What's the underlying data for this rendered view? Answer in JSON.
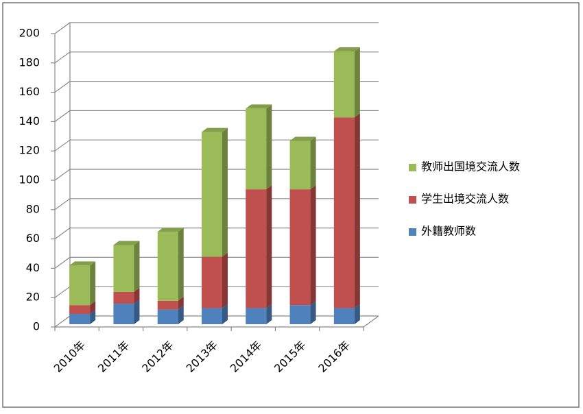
{
  "chart_data": {
    "type": "bar3d_stacked",
    "categories": [
      "2010年",
      "2011年",
      "2012年",
      "2013年",
      "2014年",
      "2015年",
      "2016年"
    ],
    "series": [
      {
        "name": "外籍教师数",
        "color": "#4f81bd",
        "values": [
          7,
          14,
          10,
          11,
          11,
          13,
          11
        ]
      },
      {
        "name": "学生出境交流人数",
        "color": "#c0504d",
        "values": [
          6,
          8,
          6,
          35,
          81,
          79,
          130
        ]
      },
      {
        "name": "教师出国境交流人数",
        "color": "#9bbb59",
        "values": [
          27,
          32,
          47,
          85,
          55,
          33,
          45
        ]
      }
    ],
    "ylim": [
      0,
      200
    ],
    "yticks": [
      0,
      20,
      40,
      60,
      80,
      100,
      120,
      140,
      160,
      180,
      200
    ],
    "grid": true
  }
}
